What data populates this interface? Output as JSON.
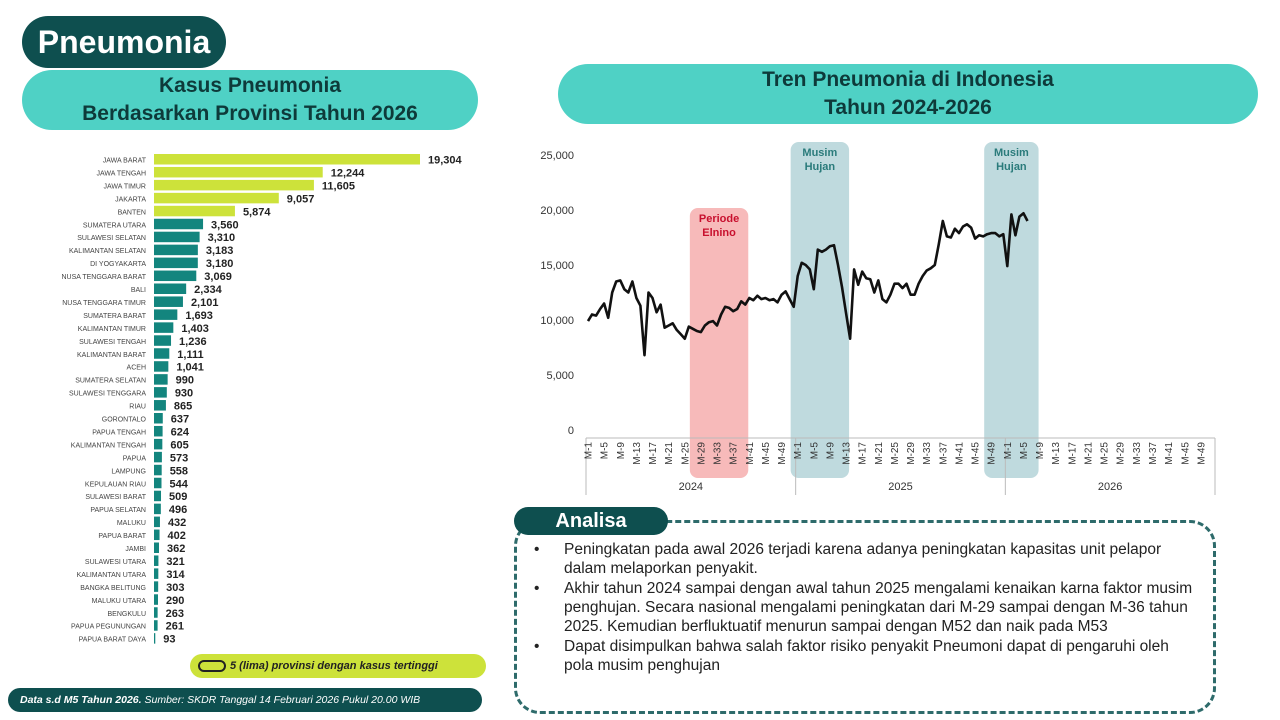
{
  "page_title": "Pneumonia",
  "bar_section": {
    "title_line1": "Kasus Pneumonia",
    "title_line2": "Berdasarkan Provinsi Tahun 2026",
    "legend_label": "5 (lima) provinsi dengan kasus tertinggi"
  },
  "line_section": {
    "title_line1": "Tren Pneumonia di Indonesia",
    "title_line2": "Tahun 2024-2026"
  },
  "colors": {
    "highlight": "#cde23a",
    "bar": "#13857e",
    "dark": "#0e4f4f",
    "header": "#4fd1c5"
  },
  "footer": {
    "bold_text": "Data s.d M5 Tahun 2026.",
    "text": " Sumber: SKDR Tanggal 14 Februari 2026 Pukul 20.00 WIB"
  },
  "analysis": {
    "label": "Analisa",
    "items": [
      "Peningkatan pada awal 2026 terjadi karena adanya peningkatan kapasitas unit pelapor dalam melaporkan penyakit.",
      "Akhir tahun 2024 sampai dengan awal tahun 2025 mengalami kenaikan karna faktor musim penghujan. Secara nasional mengalami peningkatan dari M-29 sampai dengan M-36 tahun 2025. Kemudian berfluktuatif menurun sampai dengan M52 dan naik pada M53",
      "Dapat disimpulkan bahwa salah faktor risiko penyakit Pneumoni dapat di pengaruhi oleh pola musim penghujan"
    ]
  },
  "chart_data": [
    {
      "type": "bar",
      "orientation": "horizontal",
      "categories": [
        "JAWA BARAT",
        "JAWA TENGAH",
        "JAWA TIMUR",
        "JAKARTA",
        "BANTEN",
        "SUMATERA UTARA",
        "SULAWESI SELATAN",
        "KALIMANTAN SELATAN",
        "DI YOGYAKARTA",
        "NUSA TENGGARA BARAT",
        "BALI",
        "NUSA TENGGARA TIMUR",
        "SUMATERA BARAT",
        "KALIMANTAN TIMUR",
        "SULAWESI TENGAH",
        "KALIMANTAN BARAT",
        "ACEH",
        "SUMATERA SELATAN",
        "SULAWESI TENGGARA",
        "RIAU",
        "GORONTALO",
        "PAPUA TENGAH",
        "KALIMANTAN TENGAH",
        "PAPUA",
        "LAMPUNG",
        "KEPULAUAN RIAU",
        "SULAWESI BARAT",
        "PAPUA SELATAN",
        "MALUKU",
        "PAPUA BARAT",
        "JAMBI",
        "SULAWESI UTARA",
        "KALIMANTAN UTARA",
        "BANGKA BELITUNG",
        "MALUKU UTARA",
        "BENGKULU",
        "PAPUA PEGUNUNGAN",
        "PAPUA BARAT DAYA"
      ],
      "values": [
        19304,
        12244,
        11605,
        9057,
        5874,
        3560,
        3310,
        3183,
        3180,
        3069,
        2334,
        2101,
        1693,
        1403,
        1236,
        1111,
        1041,
        990,
        930,
        865,
        637,
        624,
        605,
        573,
        558,
        544,
        509,
        496,
        432,
        402,
        362,
        321,
        314,
        303,
        290,
        263,
        261,
        93
      ],
      "labels": [
        "19,304",
        "12,244",
        "11,605",
        "9,057",
        "5,874",
        "3,560",
        "3,310",
        "3,183",
        "3,180",
        "3,069",
        "2,334",
        "2,101",
        "1,693",
        "1,403",
        "1,236",
        "1,111",
        "1,041",
        "990",
        "930",
        "865",
        "637",
        "624",
        "605",
        "573",
        "558",
        "544",
        "509",
        "496",
        "432",
        "402",
        "362",
        "321",
        "314",
        "303",
        "290",
        "263",
        "261",
        "93"
      ],
      "highlight_top": 5
    },
    {
      "type": "line",
      "y_ticks": [
        "0",
        "5,000",
        "10,000",
        "15,000",
        "20,000",
        "25,000"
      ],
      "ylim": [
        0,
        25000
      ],
      "years": [
        "2024",
        "2025",
        "2026"
      ],
      "week_ticks": [
        "M-1",
        "M-5",
        "M-9",
        "M-13",
        "M-17",
        "M-21",
        "M-25",
        "M-29",
        "M-33",
        "M-37",
        "M-41",
        "M-45",
        "M-49"
      ],
      "weeks_per_year": 52,
      "series": [
        {
          "values": [
            9900,
            10500,
            10400,
            11000,
            11500,
            10200,
            12500,
            13500,
            13600,
            12800,
            12500,
            13500,
            12000,
            11300,
            6800,
            12500,
            12000,
            10700,
            11400,
            9300,
            9500,
            9700,
            9100,
            8700,
            8300,
            9400,
            9200,
            9000,
            8900,
            9500,
            9800,
            9900,
            9500,
            10500,
            11200,
            11100,
            10800,
            11000,
            11700,
            11400,
            12000,
            11800,
            12200,
            11900,
            12000,
            11800,
            11900,
            11600,
            12300,
            12600,
            11900,
            11200,
            14000,
            15200,
            15000,
            14600,
            12800,
            16400,
            16200,
            16400,
            16700,
            16800,
            15000,
            13000,
            10600,
            8300,
            14600,
            13200,
            14400,
            13800,
            13700,
            12500,
            13600,
            11900,
            11600,
            12300,
            13300,
            13300,
            12900,
            13300,
            12300,
            12300,
            13300,
            14000,
            14500,
            14700,
            15000,
            16900,
            19000,
            17600,
            17500,
            18300,
            17900,
            18500,
            18700,
            18400,
            17400,
            17700,
            17600,
            17800,
            17900,
            17900,
            17600,
            17800,
            14900,
            19600,
            17700,
            19400,
            19700,
            19000
          ]
        }
      ],
      "annotations": [
        {
          "label_line1": "Periode",
          "label_line2": "Elnino",
          "start_week": 27,
          "end_week": 40,
          "color": "#f4a3a3"
        },
        {
          "label_line1": "Musim",
          "label_line2": "Hujan",
          "start_week": 52,
          "end_week": 65,
          "color": "#a9cdd3"
        },
        {
          "label_line1": "Musim",
          "label_line2": "Hujan",
          "start_week": 100,
          "end_week": 112,
          "color": "#a9cdd3"
        }
      ]
    }
  ]
}
